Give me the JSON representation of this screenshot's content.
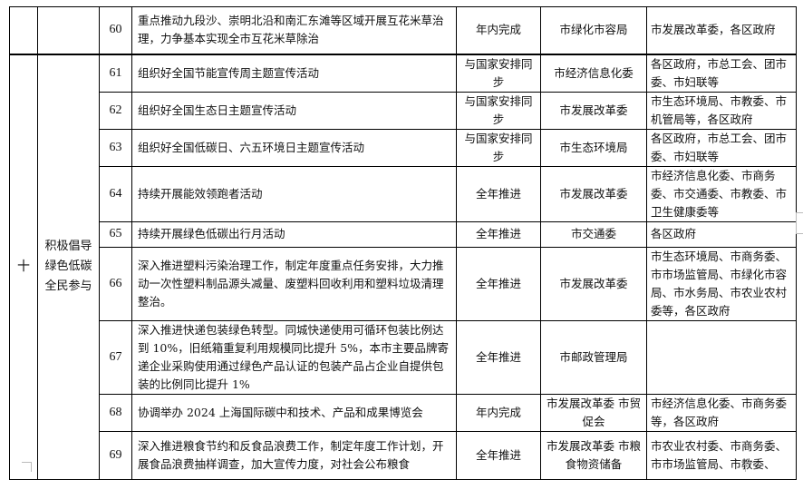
{
  "section": {
    "number": "十",
    "title": "积极倡导绿色低碳全民参与"
  },
  "rows": [
    {
      "no": "60",
      "task": "重点推动九段沙、崇明北沿和南汇东滩等区域开展互花米草治理，力争基本实现全市互花米草除治",
      "timeline": "年内完成",
      "lead": "市绿化市容局",
      "partners": "市发展改革委，各区政府"
    },
    {
      "no": "61",
      "task": "组织好全国节能宣传周主题宣传活动",
      "timeline": "与国家安排同步",
      "lead": "市经济信息化委",
      "partners": "各区政府，市总工会、团市委、市妇联等"
    },
    {
      "no": "62",
      "task": "组织好全国生态日主题宣传活动",
      "timeline": "与国家安排同步",
      "lead": "市发展改革委",
      "partners": "市生态环境局、市教委、市机管局等，各区政府"
    },
    {
      "no": "63",
      "task": "组织好全国低碳日、六五环境日主题宣传活动",
      "timeline": "与国家安排同步",
      "lead": "市生态环境局",
      "partners": "各区政府，市总工会、团市委、市妇联等"
    },
    {
      "no": "64",
      "task": "持续开展能效领跑者活动",
      "timeline": "全年推进",
      "lead": "市发展改革委",
      "partners": "市经济信息化委、市商务委、市交通委、市教委、市卫生健康委等"
    },
    {
      "no": "65",
      "task": "持续开展绿色低碳出行月活动",
      "timeline": "全年推进",
      "lead": "市交通委",
      "partners": "各区政府"
    },
    {
      "no": "66",
      "task": "深入推进塑料污染治理工作，制定年度重点任务安排，大力推动一次性塑料制品源头减量、废塑料回收利用和塑料垃圾清理整治。",
      "timeline": "全年推进",
      "lead": "市发展改革委",
      "partners": "市生态环境局、市商务委、市市场监管局、市绿化市容局、市水务局、市农业农村委等，各区政府"
    },
    {
      "no": "67",
      "task": "深入推进快递包装绿色转型。同城快递使用可循环包装比例达到 10%，旧纸箱重复利用规模同比提升 5%，本市主要品牌寄递企业采购使用通过绿色产品认证的包装产品占企业自提供包装的比例同比提升 1%",
      "timeline": "全年推进",
      "lead": "市邮政管理局",
      "partners": ""
    },
    {
      "no": "68",
      "task": "协调举办 2024 上海国际碳中和技术、产品和成果博览会",
      "timeline": "年内完成",
      "lead": "市发展改革委 市贸促会",
      "partners": "市经济信息化委、市商务委等，各区政府"
    },
    {
      "no": "69",
      "task": "深入推进粮食节约和反食品浪费工作，制定年度工作计划，开展食品浪费抽样调查，加大宣传力度，对社会公布粮食",
      "timeline": "全年推进",
      "lead": "市发展改革委 市粮食物资储备",
      "partners": "市农业农村委、市商务委、市市场监管局、市教委、"
    }
  ]
}
